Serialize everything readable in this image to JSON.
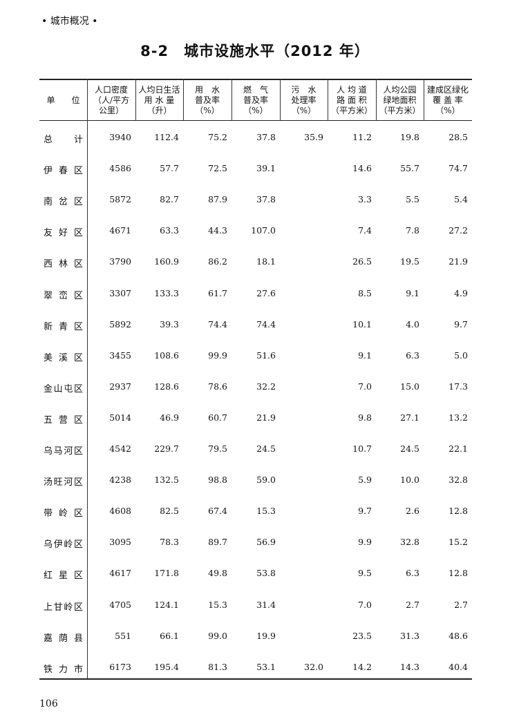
{
  "section_label": "• 城市概况 •",
  "title": "8-2　城市设施水平（2012 年）",
  "table": {
    "headers": [
      "单　　位",
      "人口密度\n（人/平方\n公里）",
      "人均日生活\n用 水 量\n（升）",
      "用　水\n普及率\n（%）",
      "燃　气\n普及率\n（%）",
      "污　水\n处理率\n（%）",
      "人 均 道\n路 面 积\n（平方米）",
      "人均公园\n绿地面积\n（平方米）",
      "建成区绿化\n覆 盖 率\n（%）"
    ],
    "rows": [
      [
        "总　计",
        "3940",
        "112.4",
        "75.2",
        "37.8",
        "35.9",
        "11.2",
        "19.8",
        "28.5"
      ],
      [
        "伊春区",
        "4586",
        "57.7",
        "72.5",
        "39.1",
        "",
        "14.6",
        "55.7",
        "74.7"
      ],
      [
        "南岔区",
        "5872",
        "82.7",
        "87.9",
        "37.8",
        "",
        "3.3",
        "5.5",
        "5.4"
      ],
      [
        "友好区",
        "4671",
        "63.3",
        "44.3",
        "107.0",
        "",
        "7.4",
        "7.8",
        "27.2"
      ],
      [
        "西林区",
        "3790",
        "160.9",
        "86.2",
        "18.1",
        "",
        "26.5",
        "19.5",
        "21.9"
      ],
      [
        "翠峦区",
        "3307",
        "133.3",
        "61.7",
        "27.6",
        "",
        "8.5",
        "9.1",
        "4.9"
      ],
      [
        "新青区",
        "5892",
        "39.3",
        "74.4",
        "74.4",
        "",
        "10.1",
        "4.0",
        "9.7"
      ],
      [
        "美溪区",
        "3455",
        "108.6",
        "99.9",
        "51.6",
        "",
        "9.1",
        "6.3",
        "5.0"
      ],
      [
        "金山屯区",
        "2937",
        "128.6",
        "78.6",
        "32.2",
        "",
        "7.0",
        "15.0",
        "17.3"
      ],
      [
        "五营区",
        "5014",
        "46.9",
        "60.7",
        "21.9",
        "",
        "9.8",
        "27.1",
        "13.2"
      ],
      [
        "乌马河区",
        "4542",
        "229.7",
        "79.5",
        "24.5",
        "",
        "10.7",
        "24.5",
        "22.1"
      ],
      [
        "汤旺河区",
        "4238",
        "132.5",
        "98.8",
        "59.0",
        "",
        "5.9",
        "10.0",
        "32.8"
      ],
      [
        "带岭区",
        "4608",
        "82.5",
        "67.4",
        "15.3",
        "",
        "9.7",
        "2.6",
        "12.8"
      ],
      [
        "乌伊岭区",
        "3095",
        "78.3",
        "89.7",
        "56.9",
        "",
        "9.9",
        "32.8",
        "15.2"
      ],
      [
        "红星区",
        "4617",
        "171.8",
        "49.8",
        "53.8",
        "",
        "9.5",
        "6.3",
        "12.8"
      ],
      [
        "上甘岭区",
        "4705",
        "124.1",
        "15.3",
        "31.4",
        "",
        "7.0",
        "2.7",
        "2.7"
      ],
      [
        "嘉荫县",
        "551",
        "66.1",
        "99.0",
        "19.9",
        "",
        "23.5",
        "31.3",
        "48.6"
      ],
      [
        "铁力市",
        "6173",
        "195.4",
        "81.3",
        "53.1",
        "32.0",
        "14.2",
        "14.3",
        "40.4"
      ]
    ]
  },
  "page_number": "106"
}
